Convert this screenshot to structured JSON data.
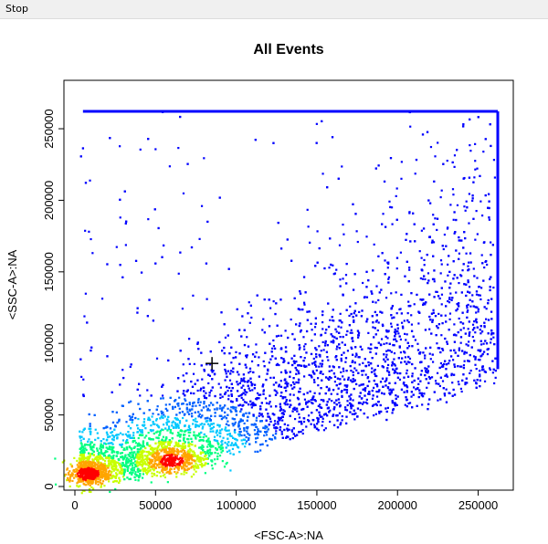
{
  "menu": {
    "stop_label": "Stop"
  },
  "colors": {
    "density_low": "#0000ff",
    "density_mid": "#00ff80",
    "density_high": "#ff0000",
    "crosshair": "#000000"
  },
  "chart_data": {
    "type": "scatter",
    "subtype": "density scatter (flow cytometry)",
    "title": "All Events",
    "xlabel": "<FSC-A>:NA",
    "ylabel": "<SSC-A>:NA",
    "xlim": [
      0,
      262144
    ],
    "ylim": [
      0,
      262144
    ],
    "x_ticks": [
      0,
      50000,
      100000,
      150000,
      200000,
      250000
    ],
    "x_tick_labels": [
      "0",
      "50000",
      "100000",
      "150000",
      "200000",
      "250000"
    ],
    "y_ticks": [
      0,
      50000,
      100000,
      150000,
      200000,
      250000
    ],
    "y_tick_labels": [
      "0",
      "50000",
      "100000",
      "150000",
      "200000",
      "250000"
    ],
    "grid": false,
    "legend": "none",
    "saturation_ceiling": 262144,
    "density_peaks": [
      {
        "x": 60000,
        "y": 18000,
        "level": "high"
      },
      {
        "x": 8000,
        "y": 9000,
        "level": "medium"
      }
    ],
    "population_center": {
      "x": 85000,
      "y": 86000,
      "marker": "+"
    }
  }
}
